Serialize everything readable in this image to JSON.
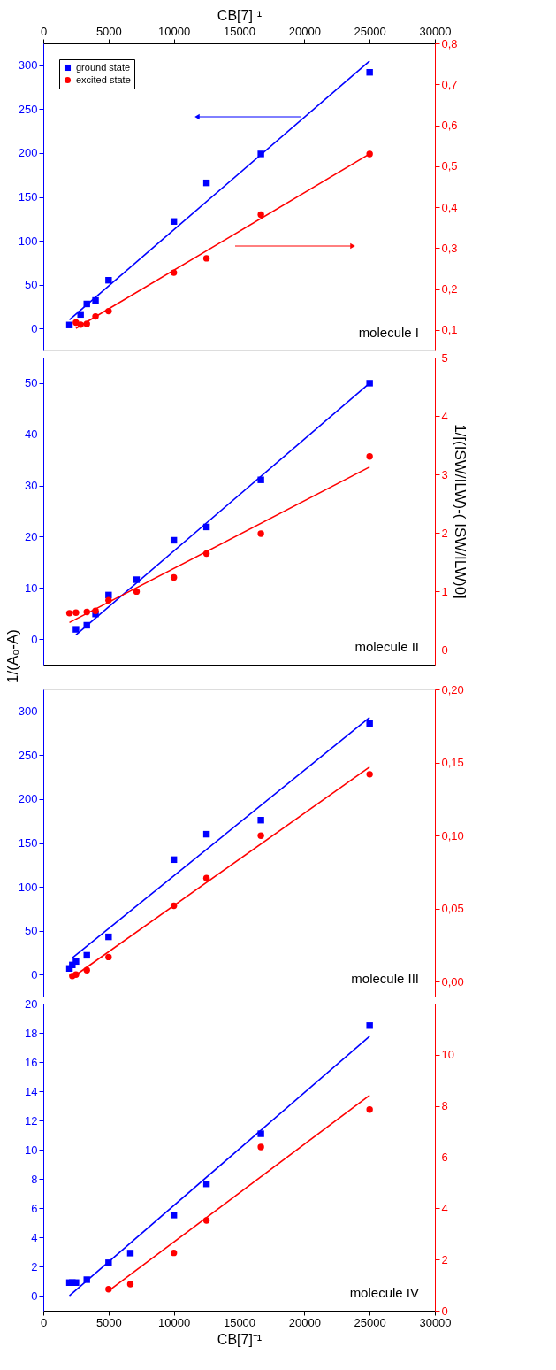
{
  "chart_data": [
    {
      "type": "scatter",
      "xlabel": "CB[7]⁻¹",
      "xlim": [
        0,
        30000
      ],
      "xticks": [
        0,
        5000,
        10000,
        15000,
        20000,
        25000,
        30000
      ],
      "ylim": [
        -25,
        325
      ],
      "yticks": [
        0,
        50,
        100,
        150,
        200,
        250,
        300
      ],
      "y2lim": [
        0.05,
        0.8
      ],
      "y2ticks": [
        {
          "value": 0.1,
          "label": "0,1"
        },
        {
          "value": 0.2,
          "label": "0,2"
        },
        {
          "value": 0.3,
          "label": "0,3"
        },
        {
          "value": 0.4,
          "label": "0,4"
        },
        {
          "value": 0.5,
          "label": "0,5"
        },
        {
          "value": 0.6,
          "label": "0,6"
        },
        {
          "value": 0.7,
          "label": "0,7"
        },
        {
          "value": 0.8,
          "label": "0,8"
        }
      ],
      "legend": "top left",
      "grid": false,
      "annotations": [
        "molecule I"
      ],
      "series": [
        {
          "name": "ground state",
          "marker": "square",
          "color": "#0000ff",
          "x": [
            2000,
            2857,
            3333,
            4000,
            5000,
            10000,
            12500,
            16667,
            25000
          ],
          "values": [
            4,
            16,
            28,
            32,
            55,
            122,
            166,
            199,
            292
          ]
        },
        {
          "name": "excited state",
          "marker": "circle",
          "color": "#ff0000",
          "axis": "y2",
          "x": [
            2500,
            2857,
            3333,
            4000,
            5000,
            10000,
            12500,
            16667,
            25000
          ],
          "values": [
            0.118,
            0.113,
            0.115,
            0.133,
            0.146,
            0.24,
            0.275,
            0.382,
            0.53
          ]
        },
        {
          "type": "line",
          "color": "#0000ff",
          "x": [
            2000,
            25000
          ],
          "values": [
            10,
            305
          ]
        },
        {
          "type": "line",
          "color": "#ff0000",
          "axis": "y2",
          "x": [
            2500,
            25000
          ],
          "values": [
            0.104,
            0.53
          ]
        }
      ]
    },
    {
      "type": "scatter",
      "xlim": [
        0,
        30000
      ],
      "tick_labels": "y",
      "ylabel": "1/(A₀-A)",
      "y2label": "1/[(ISW/ILW)-( ISW/ILW)0]",
      "ylim": [
        -5,
        55
      ],
      "yticks": [
        0,
        10,
        20,
        30,
        40,
        50
      ],
      "y2lim": [
        -0.25,
        5
      ],
      "y2ticks": [
        0,
        1,
        2,
        3,
        4,
        5
      ],
      "grid": false,
      "annotations": [
        "molecule II"
      ],
      "series": [
        {
          "type": "scatter",
          "marker": "square",
          "color": "#0000ff",
          "x": [
            2500,
            3333,
            4000,
            5000,
            7143,
            10000,
            12500,
            16667,
            25000
          ],
          "values": [
            1.9,
            2.7,
            4.9,
            8.6,
            11.6,
            19.3,
            21.9,
            31.1,
            50
          ]
        },
        {
          "type": "scatter",
          "marker": "circle",
          "color": "#ff0000",
          "axis": "y2",
          "x": [
            2000,
            2500,
            3333,
            4000,
            5000,
            7143,
            10000,
            12500,
            16667,
            25000
          ],
          "values": [
            0.63,
            0.64,
            0.65,
            0.67,
            0.85,
            1.0,
            1.24,
            1.65,
            1.99,
            3.31
          ]
        },
        {
          "type": "line",
          "color": "#0000ff",
          "x": [
            2500,
            25000
          ],
          "values": [
            0.8,
            50
          ]
        },
        {
          "type": "line",
          "color": "#ff0000",
          "axis": "y2",
          "x": [
            2000,
            25000
          ],
          "values": [
            0.47,
            3.13
          ]
        }
      ]
    },
    {
      "type": "scatter",
      "xlim": [
        0,
        30000
      ],
      "tick_labels": "y",
      "ylim": [
        -25,
        325
      ],
      "yticks": [
        0,
        50,
        100,
        150,
        200,
        250,
        300
      ],
      "y2lim": [
        -0.01,
        0.2
      ],
      "y2ticks": [
        {
          "value": 0,
          "label": "0,00"
        },
        {
          "value": 0.05,
          "label": "0,05"
        },
        {
          "value": 0.1,
          "label": "0,10"
        },
        {
          "value": 0.15,
          "label": "0,15"
        },
        {
          "value": 0.2,
          "label": "0,20"
        }
      ],
      "grid": false,
      "annotations": [
        "molecule III"
      ],
      "series": [
        {
          "type": "scatter",
          "marker": "square",
          "color": "#0000ff",
          "x": [
            2000,
            2222,
            2500,
            3333,
            5000,
            10000,
            12500,
            16667,
            25000
          ],
          "values": [
            7,
            11,
            15,
            22,
            43,
            131,
            160,
            176,
            286
          ]
        },
        {
          "type": "scatter",
          "marker": "circle",
          "color": "#ff0000",
          "axis": "y2",
          "x": [
            2222,
            2500,
            3333,
            5000,
            10000,
            12500,
            16667,
            25000
          ],
          "values": [
            0.004,
            0.005,
            0.008,
            0.017,
            0.052,
            0.071,
            0.1,
            0.142
          ]
        },
        {
          "type": "line",
          "color": "#0000ff",
          "x": [
            2222,
            25000
          ],
          "values": [
            19,
            293
          ]
        },
        {
          "type": "line",
          "color": "#ff0000",
          "axis": "y2",
          "x": [
            2222,
            25000
          ],
          "values": [
            0.003,
            0.147
          ]
        }
      ]
    },
    {
      "type": "scatter",
      "xlabel": "CB[7]⁻¹",
      "xlim": [
        0,
        30000
      ],
      "xticks": [
        0,
        5000,
        10000,
        15000,
        20000,
        25000,
        30000
      ],
      "ylim": [
        -1,
        20
      ],
      "yticks": [
        0,
        2,
        4,
        6,
        8,
        10,
        12,
        14,
        16,
        18,
        20
      ],
      "y2lim": [
        0,
        12
      ],
      "y2ticks": [
        0,
        2,
        4,
        6,
        8,
        10
      ],
      "grid": false,
      "annotations": [
        "molecule IV"
      ],
      "series": [
        {
          "type": "scatter",
          "marker": "square",
          "color": "#0000ff",
          "x": [
            2000,
            2222,
            2500,
            3333,
            5000,
            6667,
            10000,
            12500,
            16667,
            25000
          ],
          "values": [
            0.92,
            0.92,
            0.92,
            1.12,
            2.28,
            2.94,
            5.54,
            7.67,
            11.1,
            18.5
          ]
        },
        {
          "type": "scatter",
          "marker": "circle",
          "color": "#ff0000",
          "axis": "y2",
          "x": [
            5000,
            6667,
            10000,
            12500,
            16667,
            25000
          ],
          "values": [
            0.84,
            1.04,
            2.26,
            3.53,
            6.4,
            7.86
          ]
        },
        {
          "type": "line",
          "color": "#0000ff",
          "x": [
            2000,
            25000
          ],
          "values": [
            0.02,
            17.77
          ]
        },
        {
          "type": "line",
          "color": "#ff0000",
          "axis": "y2",
          "x": [
            5000,
            25000
          ],
          "values": [
            0.77,
            8.42
          ]
        }
      ]
    }
  ]
}
